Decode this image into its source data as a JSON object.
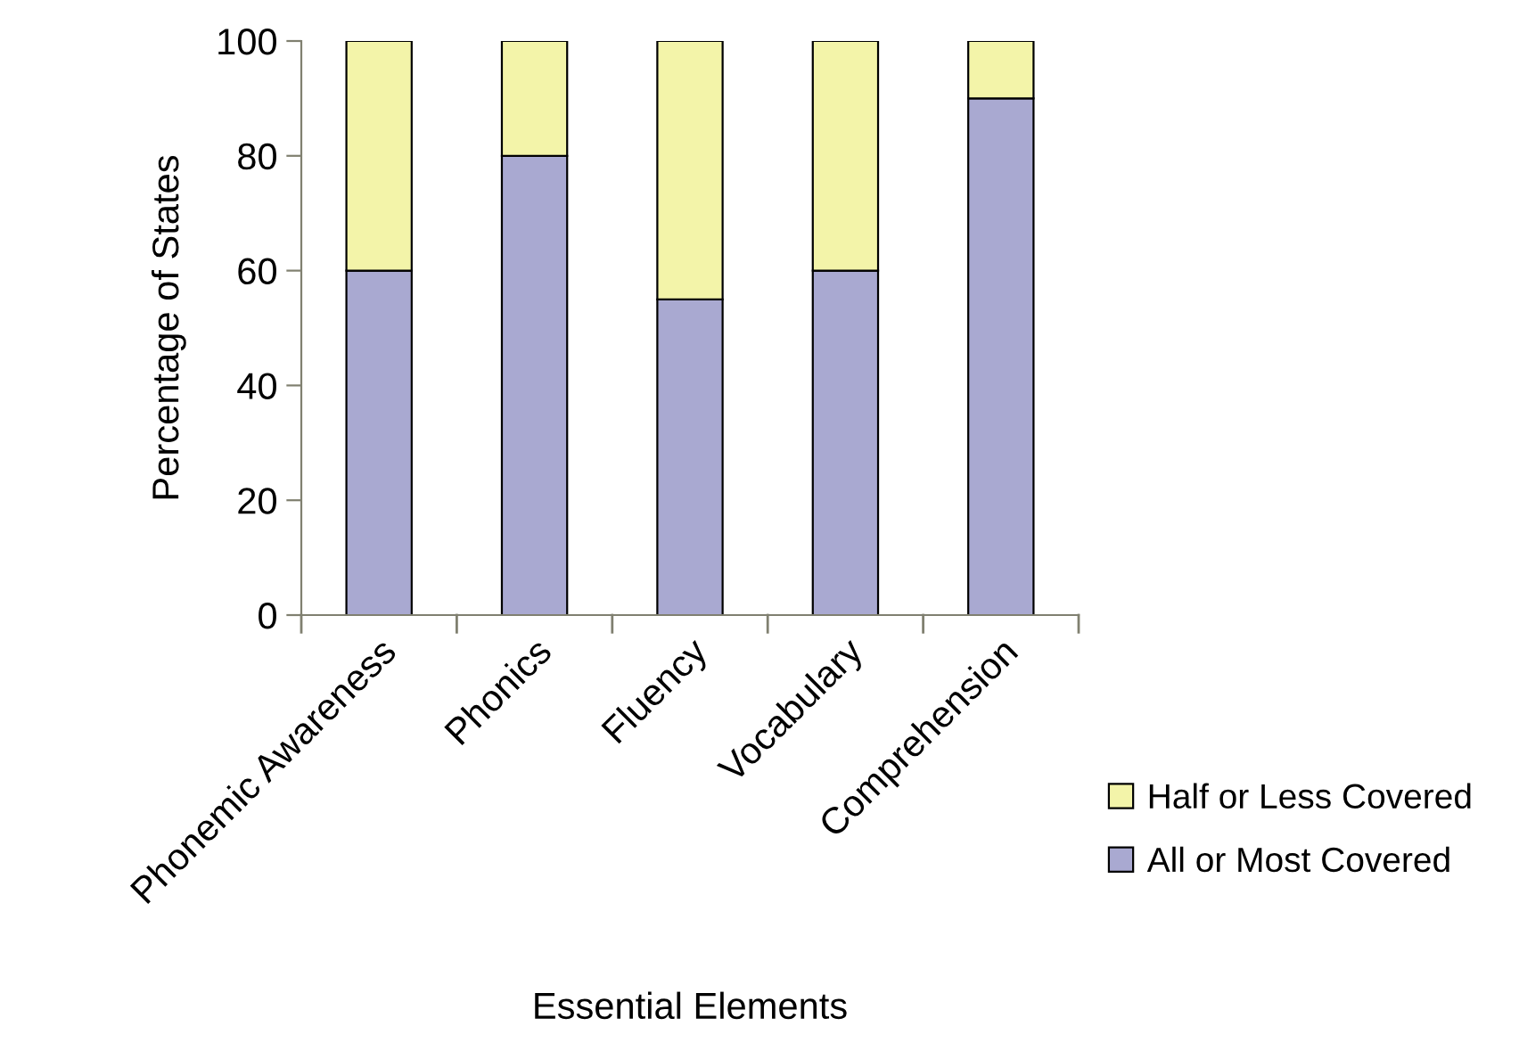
{
  "chart_data": {
    "type": "bar",
    "stacked": true,
    "categories": [
      "Phonemic Awareness",
      "Phonics",
      "Fluency",
      "Vocabulary",
      "Comprehension"
    ],
    "series": [
      {
        "name": "All or Most Covered",
        "color": "#a9a9d1",
        "values": [
          60,
          80,
          55,
          60,
          90
        ]
      },
      {
        "name": "Half or Less Covered",
        "color": "#f3f4a9",
        "values": [
          40,
          20,
          45,
          40,
          10
        ]
      }
    ],
    "xlabel": "Essential Elements",
    "ylabel": "Percentage of States",
    "ylim": [
      0,
      100
    ],
    "yticks": [
      0,
      20,
      40,
      60,
      80,
      100
    ],
    "grid": false,
    "legend": "bottom right"
  }
}
